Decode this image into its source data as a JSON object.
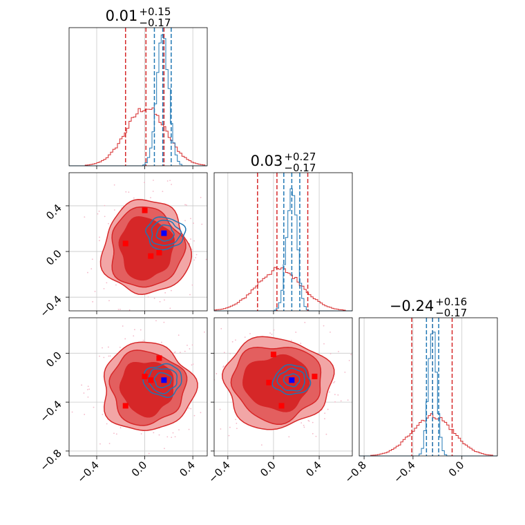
{
  "chart_data": {
    "type": "corner",
    "grid": true,
    "colors": {
      "red": "#d62728",
      "red_fill_outer": "#f2a6a6",
      "red_fill_mid": "#e35f5f",
      "red_fill_inner": "#d62728",
      "blue": "#1f77b4",
      "truth_blue": "#0000ff",
      "truth_red": "#ff0000",
      "scatter": "#f4b8c8"
    },
    "series": [
      {
        "name": "",
        "color": "#d62728"
      },
      {
        "name": "",
        "color": "#1f77b4"
      }
    ],
    "params": [
      {
        "title": {
          "median": "0.01",
          "plus": "+0.15",
          "minus": "−0.17"
        },
        "range": [
          -0.63,
          0.52
        ],
        "ticks": [
          -0.4,
          0.0,
          0.4
        ],
        "tick_labels": [
          "−0.4",
          "0.0",
          "0.4"
        ],
        "red_quantiles": [
          -0.16,
          0.01,
          0.16
        ],
        "blue_quantiles": [
          0.08,
          0.15,
          0.22
        ],
        "red_hist": {
          "center": 0.01,
          "sigma": 0.165,
          "peak": 0.42
        },
        "blue_hist": {
          "center": 0.15,
          "sigma": 0.05,
          "peak": 0.94
        }
      },
      {
        "title": {
          "median": "0.03",
          "plus": "+0.27",
          "minus": "−0.17"
        },
        "range": [
          -0.52,
          0.69
        ],
        "ticks": [
          -0.4,
          0.0,
          0.4
        ],
        "tick_labels": [
          "−0.4",
          "0.0",
          "0.4"
        ],
        "red_quantiles": [
          -0.14,
          0.03,
          0.3
        ],
        "blue_quantiles": [
          0.09,
          0.16,
          0.23
        ],
        "red_hist": {
          "center": 0.05,
          "sigma": 0.2,
          "peak": 0.3
        },
        "blue_hist": {
          "center": 0.16,
          "sigma": 0.045,
          "peak": 0.9
        }
      },
      {
        "title": {
          "median": "−0.24",
          "plus": "+0.16",
          "minus": "−0.17"
        },
        "range": [
          -0.84,
          0.29
        ],
        "ticks": [
          -0.8,
          -0.4,
          0.0
        ],
        "tick_labels": [
          "−0.8",
          "−0.4",
          "0.0"
        ],
        "red_quantiles": [
          -0.41,
          -0.24,
          -0.08
        ],
        "blue_quantiles": [
          -0.29,
          -0.24,
          -0.19
        ],
        "red_hist": {
          "center": -0.24,
          "sigma": 0.17,
          "peak": 0.29
        },
        "blue_hist": {
          "center": -0.24,
          "sigma": 0.035,
          "peak": 0.9
        }
      }
    ],
    "contour_panels": [
      {
        "xi": 0,
        "yi": 1,
        "red_center": [
          0.01,
          0.03
        ],
        "red_radii": [
          [
            0.36,
            0.41
          ],
          [
            0.3,
            0.35
          ],
          [
            0.22,
            0.27
          ]
        ],
        "blue_center": [
          0.17,
          0.16
        ],
        "blue_radii": [
          [
            0.07,
            0.07
          ],
          [
            0.12,
            0.11
          ],
          [
            0.16,
            0.14
          ]
        ],
        "truth_blue": [
          0.16,
          0.16
        ],
        "truth_red": [
          [
            -0.16,
            0.07
          ],
          [
            0.0,
            0.36
          ],
          [
            0.05,
            -0.04
          ],
          [
            0.12,
            -0.01
          ]
        ]
      },
      {
        "xi": 0,
        "yi": 2,
        "red_center": [
          0.02,
          -0.28
        ],
        "red_radii": [
          [
            0.38,
            0.36
          ],
          [
            0.31,
            0.3
          ],
          [
            0.22,
            0.22
          ]
        ],
        "blue_center": [
          0.15,
          -0.22
        ],
        "blue_radii": [
          [
            0.07,
            0.06
          ],
          [
            0.12,
            0.1
          ],
          [
            0.16,
            0.13
          ]
        ],
        "truth_blue": [
          0.16,
          -0.22
        ],
        "truth_red": [
          [
            -0.16,
            -0.43
          ],
          [
            0.0,
            -0.19
          ],
          [
            0.05,
            -0.22
          ],
          [
            0.12,
            -0.04
          ]
        ]
      },
      {
        "xi": 1,
        "yi": 2,
        "red_center": [
          0.03,
          -0.24
        ],
        "red_radii": [
          [
            0.47,
            0.37
          ],
          [
            0.39,
            0.31
          ],
          [
            0.29,
            0.22
          ]
        ],
        "blue_center": [
          0.16,
          -0.22
        ],
        "blue_radii": [
          [
            0.07,
            0.05
          ],
          [
            0.12,
            0.09
          ],
          [
            0.16,
            0.12
          ]
        ],
        "truth_blue": [
          0.16,
          -0.22
        ],
        "truth_red": [
          [
            -0.04,
            -0.24
          ],
          [
            0.07,
            -0.43
          ],
          [
            0.36,
            -0.19
          ],
          [
            0.0,
            -0.01
          ]
        ]
      }
    ]
  }
}
